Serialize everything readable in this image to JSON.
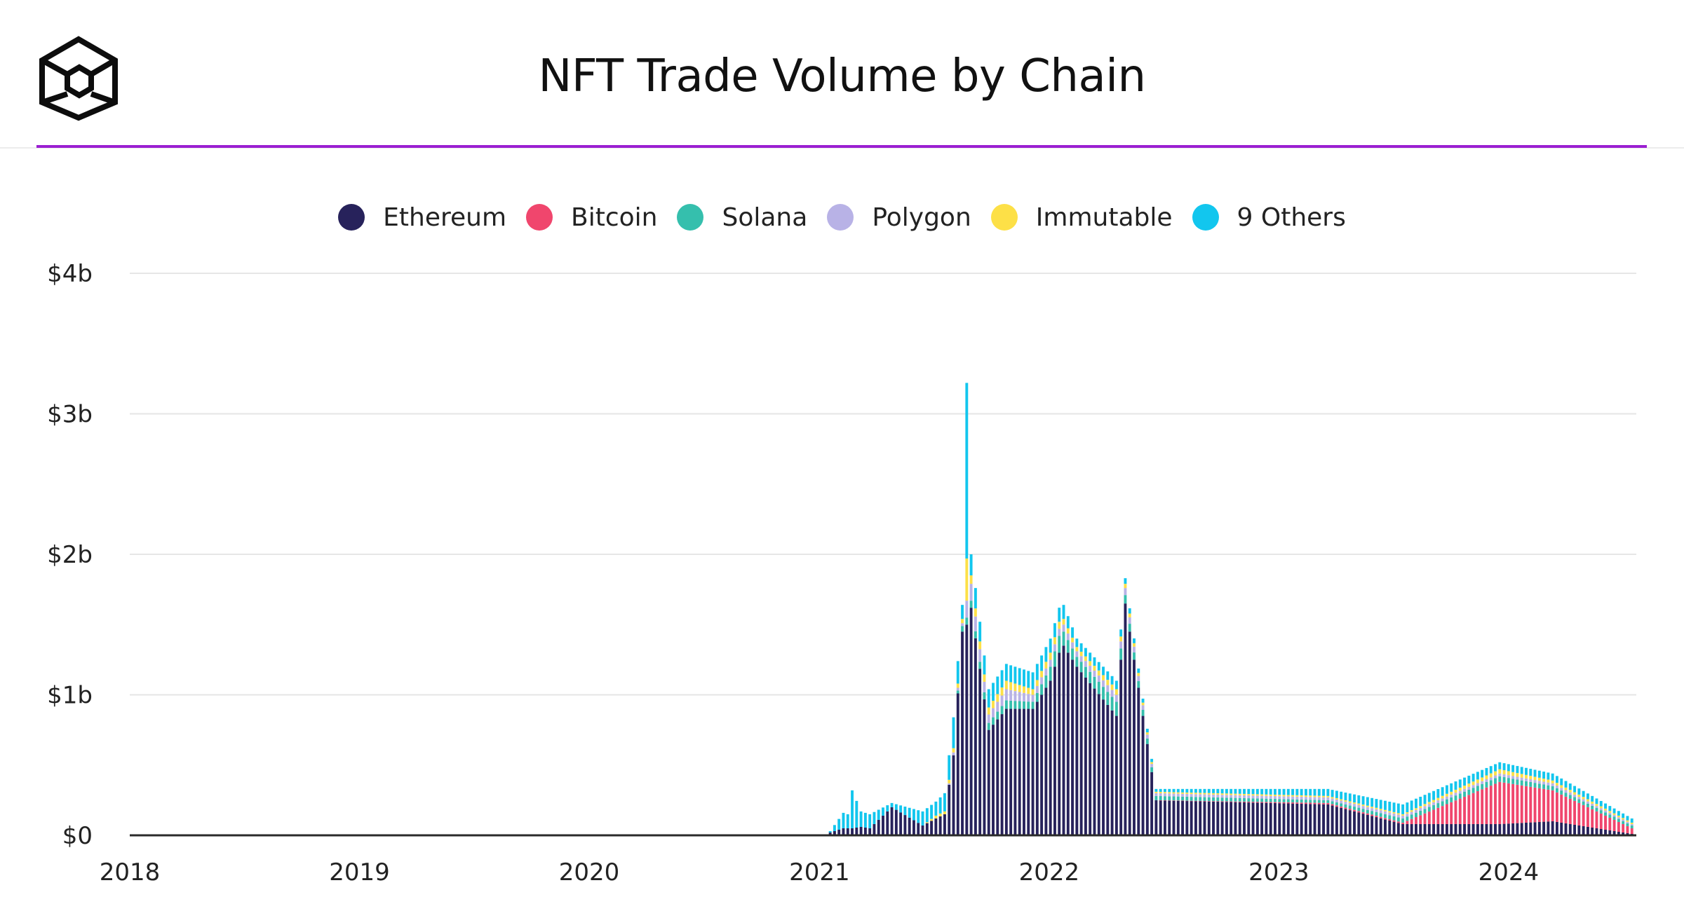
{
  "header": {
    "title": "NFT Trade Volume by Chain",
    "logo_icon": "cube-icon",
    "accent_color": "#9b1fd1"
  },
  "chart_data": {
    "type": "bar",
    "stacked": true,
    "title": "NFT Trade Volume by Chain",
    "xlabel": "",
    "ylabel": "",
    "unit": "USD billions",
    "ylim": [
      0,
      4
    ],
    "y_ticks": [
      {
        "value": 0,
        "label": "$0"
      },
      {
        "value": 1,
        "label": "$1b"
      },
      {
        "value": 2,
        "label": "$2b"
      },
      {
        "value": 3,
        "label": "$3b"
      },
      {
        "value": 4,
        "label": "$4b"
      }
    ],
    "x_ticks": [
      "2018",
      "2019",
      "2020",
      "2021",
      "2022",
      "2023",
      "2024"
    ],
    "grid": true,
    "legend_position": "top-center",
    "week_range": [
      "2018-01-01",
      "2024-07-15"
    ],
    "series": [
      {
        "name": "Ethereum",
        "color": "#27225b"
      },
      {
        "name": "Bitcoin",
        "color": "#f0466d"
      },
      {
        "name": "Solana",
        "color": "#35bfad"
      },
      {
        "name": "Polygon",
        "color": "#b8b2e6"
      },
      {
        "name": "Immutable",
        "color": "#fde047"
      },
      {
        "name": "9 Others",
        "color": "#12c6ee"
      }
    ],
    "points": [
      {
        "date": "2021-01-18",
        "values": [
          0.02,
          0,
          0,
          0,
          0,
          0.01
        ]
      },
      {
        "date": "2021-02-08",
        "values": [
          0.05,
          0,
          0,
          0,
          0,
          0.11
        ]
      },
      {
        "date": "2021-02-15",
        "values": [
          0.05,
          0,
          0,
          0,
          0,
          0.1
        ]
      },
      {
        "date": "2021-02-22",
        "values": [
          0.05,
          0,
          0,
          0,
          0,
          0.27
        ]
      },
      {
        "date": "2021-03-08",
        "values": [
          0.06,
          0,
          0,
          0,
          0,
          0.11
        ]
      },
      {
        "date": "2021-03-22",
        "values": [
          0.05,
          0,
          0,
          0,
          0,
          0.1
        ]
      },
      {
        "date": "2021-04-26",
        "values": [
          0.2,
          0,
          0,
          0,
          0,
          0.03
        ]
      },
      {
        "date": "2021-06-14",
        "values": [
          0.07,
          0,
          0,
          0,
          0,
          0.1
        ]
      },
      {
        "date": "2021-07-05",
        "values": [
          0.12,
          0,
          0,
          0,
          0.02,
          0.1
        ]
      },
      {
        "date": "2021-07-19",
        "values": [
          0.15,
          0,
          0,
          0,
          0.02,
          0.13
        ]
      },
      {
        "date": "2021-08-02",
        "values": [
          0.57,
          0,
          0,
          0.02,
          0.03,
          0.22
        ]
      },
      {
        "date": "2021-08-16",
        "values": [
          1.45,
          0,
          0.04,
          0.02,
          0.03,
          0.1
        ]
      },
      {
        "date": "2021-08-23",
        "values": [
          1.5,
          0,
          0.05,
          0.12,
          0.3,
          1.25
        ]
      },
      {
        "date": "2021-08-30",
        "values": [
          1.62,
          0,
          0.05,
          0.12,
          0.06,
          0.15
        ]
      },
      {
        "date": "2021-09-27",
        "values": [
          0.75,
          0,
          0.05,
          0.06,
          0.05,
          0.13
        ]
      },
      {
        "date": "2021-10-25",
        "values": [
          0.9,
          0,
          0.06,
          0.08,
          0.06,
          0.12
        ]
      },
      {
        "date": "2021-12-06",
        "values": [
          0.9,
          0,
          0.05,
          0.05,
          0.04,
          0.12
        ]
      },
      {
        "date": "2022-01-03",
        "values": [
          1.1,
          0,
          0.1,
          0.05,
          0.05,
          0.1
        ]
      },
      {
        "date": "2022-01-17",
        "values": [
          1.3,
          0,
          0.12,
          0.05,
          0.05,
          0.1
        ]
      },
      {
        "date": "2022-01-24",
        "values": [
          1.35,
          0,
          0.1,
          0.05,
          0.04,
          0.1
        ]
      },
      {
        "date": "2022-02-14",
        "values": [
          1.2,
          0,
          0.07,
          0.04,
          0.03,
          0.06
        ]
      },
      {
        "date": "2022-04-18",
        "values": [
          0.85,
          0,
          0.1,
          0.05,
          0.04,
          0.06
        ]
      },
      {
        "date": "2022-05-02",
        "values": [
          1.65,
          0,
          0.06,
          0.05,
          0.03,
          0.04
        ]
      },
      {
        "date": "2022-06-20",
        "values": [
          0.25,
          0,
          0.03,
          0.02,
          0.01,
          0.02
        ]
      },
      {
        "date": "2023-03-20",
        "values": [
          0.22,
          0.01,
          0.02,
          0.02,
          0.01,
          0.05
        ]
      },
      {
        "date": "2023-07-17",
        "values": [
          0.08,
          0.01,
          0.03,
          0.02,
          0.01,
          0.07
        ]
      },
      {
        "date": "2023-12-18",
        "values": [
          0.08,
          0.3,
          0.04,
          0.02,
          0.03,
          0.05
        ]
      },
      {
        "date": "2024-03-11",
        "values": [
          0.1,
          0.22,
          0.03,
          0.02,
          0.02,
          0.05
        ]
      },
      {
        "date": "2024-07-15",
        "values": [
          0.01,
          0.04,
          0.02,
          0.01,
          0.01,
          0.03
        ]
      }
    ]
  }
}
